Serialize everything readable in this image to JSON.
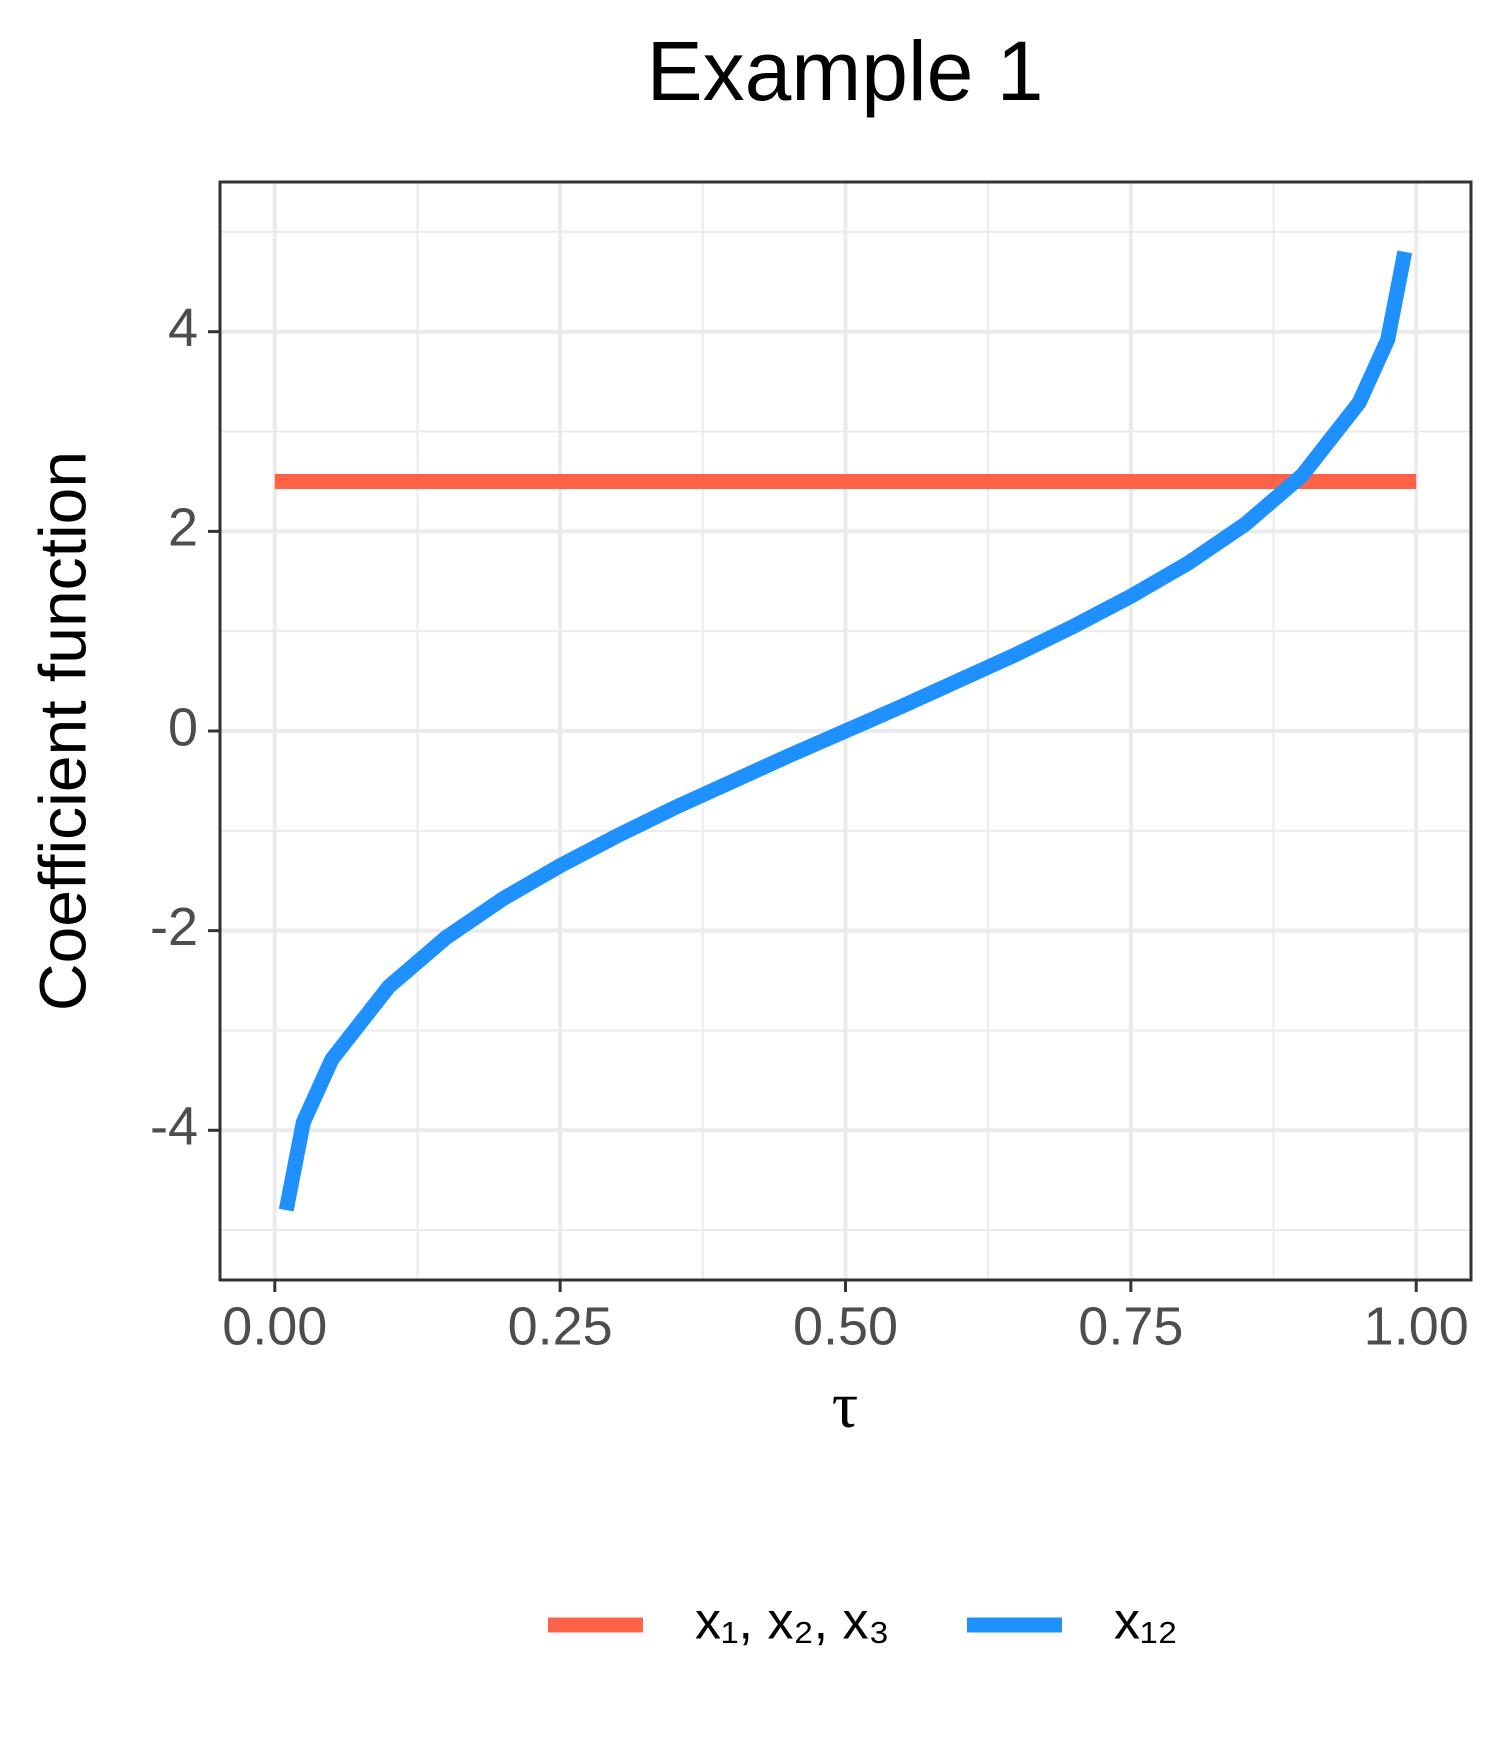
{
  "chart_data": {
    "type": "line",
    "title": "Example 1",
    "x_label": "τ",
    "y_label": "Coefficient function",
    "xlim": [
      -0.048,
      1.048
    ],
    "ylim": [
      -5.5,
      5.5
    ],
    "xticks": [
      {
        "value": 0,
        "label": "0.00"
      },
      {
        "value": 0.25,
        "label": "0.25"
      },
      {
        "value": 0.5,
        "label": "0.50"
      },
      {
        "value": 0.75,
        "label": "0.75"
      },
      {
        "value": 1,
        "label": "1.00"
      }
    ],
    "yticks": [
      -4,
      -2,
      0,
      2,
      4
    ],
    "x_minor_grid": [
      0.125,
      0.375,
      0.625,
      0.875
    ],
    "y_minor_grid": [
      -5,
      -3,
      -1,
      1,
      3,
      5
    ],
    "grid": true,
    "legend_position": "bottom",
    "series": [
      {
        "name": "x₁, x₂, x₃",
        "color": "#ff6347",
        "x": [
          0,
          1
        ],
        "values": [
          2.5,
          2.5
        ]
      },
      {
        "name": "x₁₂",
        "color": "#1e90ff",
        "x": [
          0.01,
          0.025,
          0.05,
          0.1,
          0.15,
          0.2,
          0.25,
          0.3,
          0.35,
          0.4,
          0.45,
          0.5,
          0.55,
          0.6,
          0.65,
          0.7,
          0.75,
          0.8,
          0.85,
          0.9,
          0.95,
          0.975,
          0.99
        ],
        "values": [
          -4.8,
          -3.92,
          -3.29,
          -2.56,
          -2.07,
          -1.68,
          -1.35,
          -1.05,
          -0.77,
          -0.51,
          -0.25,
          0,
          0.25,
          0.51,
          0.77,
          1.05,
          1.35,
          1.68,
          2.07,
          2.56,
          3.29,
          3.92,
          4.8
        ]
      }
    ]
  }
}
